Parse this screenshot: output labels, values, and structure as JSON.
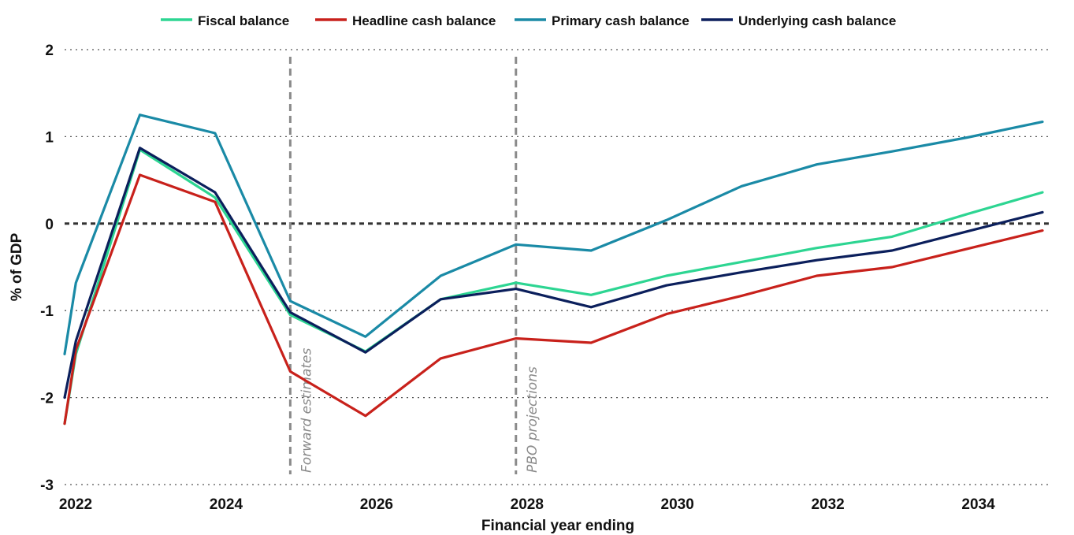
{
  "chart_data": {
    "type": "line",
    "title": "",
    "xlabel": "Financial year ending",
    "ylabel": "% of GDP",
    "xlim": [
      2022,
      2035
    ],
    "ylim": [
      -3,
      2
    ],
    "xticks": [
      2022,
      2024,
      2026,
      2028,
      2030,
      2032,
      2034
    ],
    "xtick_labels": [
      "2022",
      "2024",
      "2026",
      "2028",
      "2030",
      "2032",
      "2034"
    ],
    "yticks": [
      2,
      1,
      0,
      -1,
      -2,
      -3
    ],
    "ytick_labels": [
      "2",
      "1",
      "0",
      "-1",
      "-2",
      "-3"
    ],
    "grid": "horizontal dotted",
    "zero_line": "dashed",
    "legend_position": "top",
    "series": [
      {
        "name": "Fiscal balance",
        "color": "#2dd592",
        "x": [
          2022,
          2022.15,
          2023,
          2024,
          2025,
          2026,
          2027,
          2028,
          2029,
          2030,
          2031,
          2032,
          2033,
          2034,
          2035
        ],
        "y": [
          -2.3,
          -1.5,
          0.85,
          0.3,
          -1.05,
          -1.47,
          -0.87,
          -0.68,
          -0.82,
          -0.6,
          -0.44,
          -0.28,
          -0.15,
          0.11,
          0.36
        ]
      },
      {
        "name": "Headline cash balance",
        "color": "#c8211b",
        "x": [
          2022,
          2022.15,
          2023,
          2024,
          2025,
          2026,
          2027,
          2028,
          2029,
          2030,
          2031,
          2032,
          2033,
          2034,
          2035
        ],
        "y": [
          -2.3,
          -1.45,
          0.56,
          0.25,
          -1.7,
          -2.21,
          -1.55,
          -1.32,
          -1.37,
          -1.04,
          -0.83,
          -0.6,
          -0.5,
          -0.29,
          -0.08
        ]
      },
      {
        "name": "Primary cash balance",
        "color": "#1a8aa6",
        "x": [
          2022,
          2022.15,
          2023,
          2024,
          2025,
          2026,
          2027,
          2028,
          2029,
          2030,
          2031,
          2032,
          2033,
          2034,
          2035
        ],
        "y": [
          -1.5,
          -0.68,
          1.25,
          1.04,
          -0.89,
          -1.3,
          -0.6,
          -0.24,
          -0.31,
          0.04,
          0.43,
          0.68,
          0.83,
          0.99,
          1.17
        ]
      },
      {
        "name": "Underlying cash balance",
        "color": "#0b1f5c",
        "x": [
          2022,
          2022.15,
          2023,
          2024,
          2025,
          2026,
          2027,
          2028,
          2029,
          2030,
          2031,
          2032,
          2033,
          2034,
          2035
        ],
        "y": [
          -2.0,
          -1.35,
          0.87,
          0.36,
          -1.02,
          -1.48,
          -0.87,
          -0.75,
          -0.96,
          -0.71,
          -0.56,
          -0.42,
          -0.31,
          -0.09,
          0.13
        ]
      }
    ],
    "annotations": [
      {
        "text": "Forward estimates",
        "x": 2025
      },
      {
        "text": "PBO projections",
        "x": 2028
      }
    ]
  }
}
